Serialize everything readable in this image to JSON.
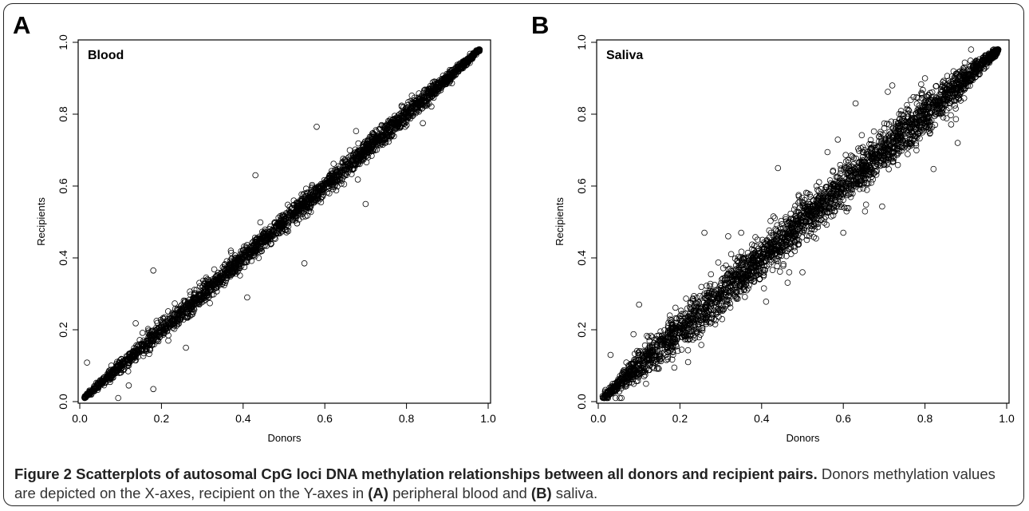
{
  "chart_data": [
    {
      "panel": "A",
      "type": "scatter",
      "title": "Blood",
      "xlabel": "Donors",
      "ylabel": "Recipients",
      "xlim": [
        0.0,
        1.0
      ],
      "ylim": [
        0.0,
        1.0
      ],
      "xticks": [
        "0.0",
        "0.2",
        "0.4",
        "0.6",
        "0.8",
        "1.0"
      ],
      "yticks": [
        "0.0",
        "0.2",
        "0.4",
        "0.6",
        "0.8",
        "1.0"
      ],
      "grid": false,
      "marker": "open-circle",
      "series": [
        {
          "points_generated": true,
          "x_range": [
            0.01,
            0.98
          ],
          "y_range": [
            0.01,
            0.98
          ],
          "relationship": "y ≈ x",
          "spread_sd": 0.014,
          "points": [
            [
              0.01,
              0.01
            ],
            [
              0.1,
              0.1
            ],
            [
              0.2,
              0.2
            ],
            [
              0.3,
              0.3
            ],
            [
              0.4,
              0.4
            ],
            [
              0.5,
              0.5
            ],
            [
              0.6,
              0.6
            ],
            [
              0.7,
              0.7
            ],
            [
              0.8,
              0.8
            ],
            [
              0.9,
              0.9
            ],
            [
              0.98,
              0.98
            ]
          ],
          "outliers": [
            [
              0.18,
              0.365
            ],
            [
              0.18,
              0.035
            ],
            [
              0.43,
              0.63
            ],
            [
              0.58,
              0.765
            ],
            [
              0.7,
              0.55
            ],
            [
              0.55,
              0.385
            ],
            [
              0.8,
              0.79
            ],
            [
              0.37,
              0.42
            ],
            [
              0.41,
              0.29
            ],
            [
              0.26,
              0.15
            ],
            [
              0.12,
              0.045
            ],
            [
              0.84,
              0.775
            ]
          ]
        }
      ]
    },
    {
      "panel": "B",
      "type": "scatter",
      "title": "Saliva",
      "xlabel": "Donors",
      "ylabel": "Recipients",
      "xlim": [
        0.0,
        1.0
      ],
      "ylim": [
        0.0,
        1.0
      ],
      "xticks": [
        "0.0",
        "0.2",
        "0.4",
        "0.6",
        "0.8",
        "1.0"
      ],
      "yticks": [
        "0.0",
        "0.2",
        "0.4",
        "0.6",
        "0.8",
        "1.0"
      ],
      "grid": false,
      "marker": "open-circle",
      "series": [
        {
          "points_generated": true,
          "x_range": [
            0.01,
            0.98
          ],
          "y_range": [
            0.01,
            0.98
          ],
          "relationship": "y ≈ x",
          "spread_sd": 0.03,
          "points": [
            [
              0.01,
              0.01
            ],
            [
              0.1,
              0.1
            ],
            [
              0.2,
              0.2
            ],
            [
              0.3,
              0.3
            ],
            [
              0.4,
              0.4
            ],
            [
              0.5,
              0.5
            ],
            [
              0.6,
              0.6
            ],
            [
              0.7,
              0.7
            ],
            [
              0.8,
              0.8
            ],
            [
              0.9,
              0.9
            ],
            [
              0.98,
              0.98
            ]
          ],
          "outliers": [
            [
              0.1,
              0.27
            ],
            [
              0.44,
              0.65
            ],
            [
              0.63,
              0.83
            ],
            [
              0.72,
              0.88
            ],
            [
              0.8,
              0.9
            ],
            [
              0.88,
              0.72
            ],
            [
              0.6,
              0.47
            ],
            [
              0.22,
              0.11
            ],
            [
              0.35,
              0.47
            ],
            [
              0.5,
              0.36
            ],
            [
              0.26,
              0.47
            ],
            [
              0.03,
              0.13
            ]
          ]
        }
      ]
    }
  ],
  "figure": {
    "panel_labels": [
      "A",
      "B"
    ],
    "caption_title": "Figure 2 Scatterplots of autosomal CpG loci DNA methylation relationships between all donors and recipient pairs.",
    "caption_part1": " Donors methylation values are depicted on the X-axes, recipient on the Y-axes in ",
    "caption_ref_a": "(A)",
    "caption_part2": " peripheral blood and ",
    "caption_ref_b": "(B)",
    "caption_part3": " saliva."
  }
}
